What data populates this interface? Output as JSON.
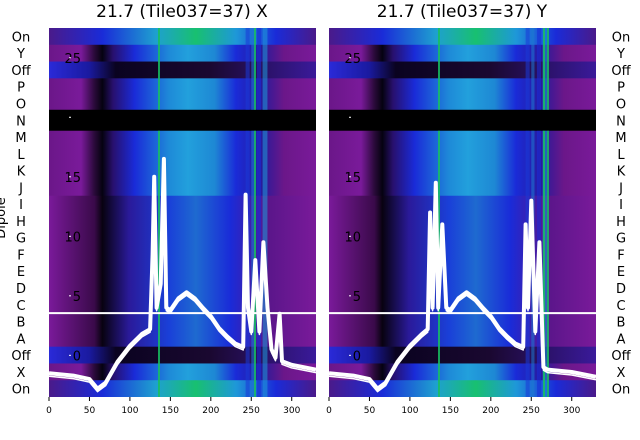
{
  "figure_ylabel": "Dipole",
  "row_labels_top_to_bottom": [
    "On",
    "Y",
    "Off",
    "P",
    "O",
    "N",
    "M",
    "L",
    "K",
    "J",
    "I",
    "H",
    "G",
    "F",
    "E",
    "D",
    "C",
    "B",
    "A",
    "Off",
    "X",
    "On"
  ],
  "colors": {
    "purple": "#7a1a9a",
    "black_band": "#000000",
    "blue": "#1a2bd8",
    "cyan": "#1e9ad8",
    "green": "#18c060",
    "trace": "#ffffff",
    "text": "#000000"
  },
  "chart_data": [
    {
      "type": "line",
      "title": "21.7 (Tile037=37) X",
      "xlabel": "",
      "ylabel": "",
      "x_ticks": [
        "0",
        "50",
        "100",
        "150",
        "200",
        "250",
        "300"
      ],
      "y_ticks": [
        "0",
        "5",
        "10",
        "15",
        "20",
        "25"
      ],
      "xlim": [
        0,
        330
      ],
      "ylim": [
        -3.5,
        27.5
      ],
      "grid": false,
      "background": "heatmap",
      "series": [
        {
          "values": [
            [
              0,
              -1.5
            ],
            [
              30,
              -1.7
            ],
            [
              50,
              -2
            ],
            [
              60,
              -2.8
            ],
            [
              70,
              -2.3
            ],
            [
              85,
              -0.5
            ],
            [
              100,
              0.8
            ],
            [
              115,
              1.8
            ],
            [
              125,
              2.2
            ],
            [
              128,
              8.5
            ],
            [
              130,
              15
            ],
            [
              133,
              4
            ],
            [
              138,
              6
            ],
            [
              142,
              16.5
            ],
            [
              145,
              4
            ],
            [
              150,
              3.8
            ],
            [
              160,
              4.8
            ],
            [
              170,
              5.3
            ],
            [
              180,
              4.8
            ],
            [
              190,
              4
            ],
            [
              200,
              3.3
            ],
            [
              210,
              2.3
            ],
            [
              220,
              1.6
            ],
            [
              230,
              1
            ],
            [
              240,
              0.7
            ],
            [
              243,
              13.5
            ],
            [
              246,
              4
            ],
            [
              250,
              2
            ],
            [
              255,
              8
            ],
            [
              260,
              2
            ],
            [
              265,
              9.5
            ],
            [
              270,
              4
            ],
            [
              275,
              0.5
            ],
            [
              280,
              -0.2
            ],
            [
              285,
              3.5
            ],
            [
              288,
              -0.5
            ],
            [
              300,
              -0.8
            ],
            [
              330,
              -1.2
            ]
          ]
        }
      ]
    },
    {
      "type": "line",
      "title": "21.7 (Tile037=37) Y",
      "xlabel": "",
      "ylabel": "",
      "x_ticks": [
        "0",
        "50",
        "100",
        "150",
        "200",
        "250",
        "300"
      ],
      "y_ticks": [
        "0",
        "5",
        "10",
        "15",
        "20",
        "25"
      ],
      "xlim": [
        0,
        330
      ],
      "ylim": [
        -3.5,
        27.5
      ],
      "grid": false,
      "background": "heatmap",
      "series": [
        {
          "values": [
            [
              0,
              -1.5
            ],
            [
              30,
              -1.7
            ],
            [
              50,
              -2
            ],
            [
              60,
              -2.8
            ],
            [
              70,
              -2.3
            ],
            [
              85,
              -0.5
            ],
            [
              100,
              0.8
            ],
            [
              115,
              1.8
            ],
            [
              122,
              2.2
            ],
            [
              125,
              12
            ],
            [
              128,
              4
            ],
            [
              132,
              14.5
            ],
            [
              135,
              4
            ],
            [
              140,
              11
            ],
            [
              145,
              4
            ],
            [
              150,
              3.8
            ],
            [
              160,
              4.8
            ],
            [
              170,
              5.3
            ],
            [
              180,
              4.8
            ],
            [
              190,
              4
            ],
            [
              200,
              3.3
            ],
            [
              210,
              2.3
            ],
            [
              220,
              1.6
            ],
            [
              230,
              1
            ],
            [
              240,
              0.7
            ],
            [
              243,
              11
            ],
            [
              246,
              4
            ],
            [
              250,
              13
            ],
            [
              255,
              2
            ],
            [
              260,
              9.5
            ],
            [
              265,
              -1
            ],
            [
              270,
              -1.2
            ],
            [
              300,
              -1.4
            ],
            [
              330,
              -1.8
            ]
          ]
        }
      ]
    }
  ]
}
